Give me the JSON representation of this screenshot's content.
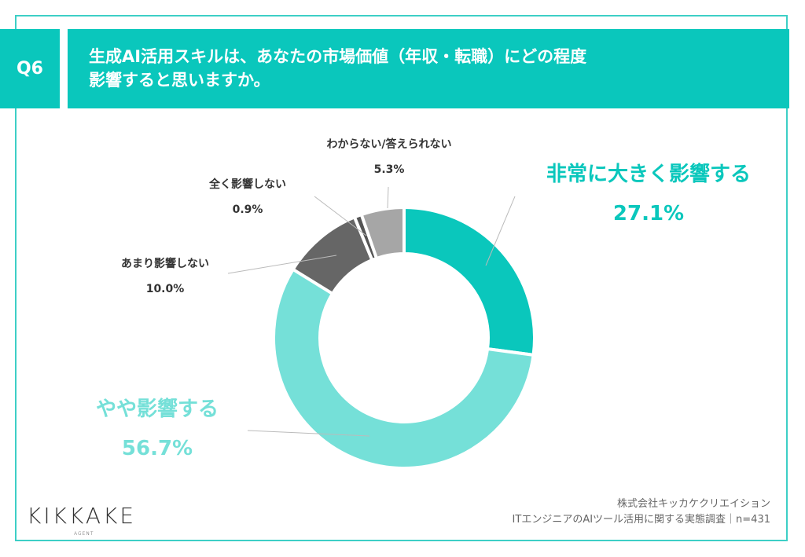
{
  "header": {
    "question_no": "Q6",
    "title_line1": "生成AI活用スキルは、あなたの市場価値（年収・転職）にどの程度",
    "title_line2": "影響すると思いますか。"
  },
  "chart_data": {
    "type": "pie",
    "donut": true,
    "categories": [
      "非常に大きく影響する",
      "やや影響する",
      "あまり影響しない",
      "全く影響しない",
      "わからない/答えられない"
    ],
    "values": [
      27.1,
      56.7,
      10.0,
      0.9,
      5.3
    ],
    "labels": [
      "27.1%",
      "56.7%",
      "10.0%",
      "0.9%",
      "5.3%"
    ],
    "colors": [
      "#0ac7bc",
      "#75e0d8",
      "#666666",
      "#555555",
      "#a6a6a6"
    ],
    "start": "12 o'clock",
    "direction": "clockwise"
  },
  "footer": {
    "company": "株式会社キッカケクリエイション",
    "survey": "ITエンジニアのAIツール活用に関する実態調査｜n=431",
    "logo": "KIKKAKE",
    "logo_sub": "AGENT"
  }
}
